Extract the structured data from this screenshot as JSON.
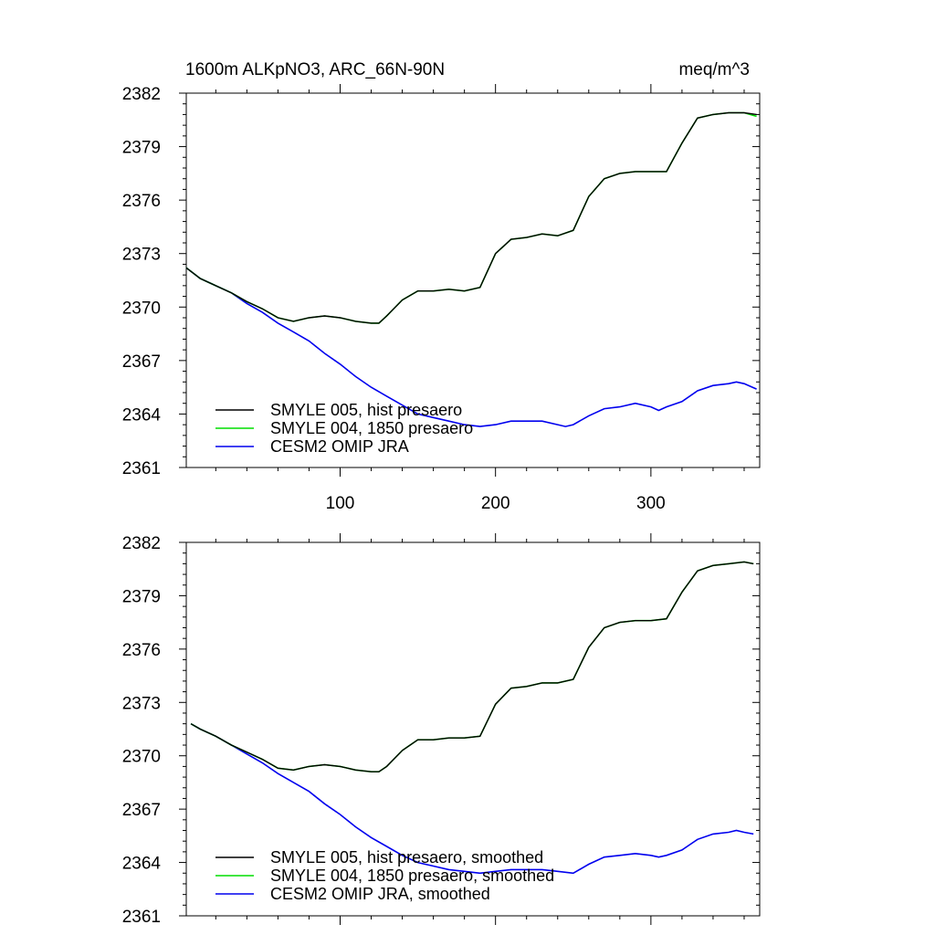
{
  "figure": {
    "title_left": "1600m ALKpNO3, ARC_66N-90N",
    "title_right": "meq/m^3"
  },
  "chart_data": [
    {
      "type": "line",
      "xlim": [
        1,
        370
      ],
      "ylim": [
        2361,
        2382
      ],
      "yticks": [
        2361,
        2364,
        2367,
        2370,
        2373,
        2376,
        2379,
        2382
      ],
      "xticks": [
        100,
        200,
        300
      ],
      "xtick_labels_shown": true,
      "grid": false,
      "legend_position": "bottom-left",
      "series": [
        {
          "name": "SMYLE 005, hist presaero",
          "color": "#000000",
          "points": [
            [
              1,
              2372.2
            ],
            [
              10,
              2371.6
            ],
            [
              20,
              2371.2
            ],
            [
              30,
              2370.8
            ],
            [
              40,
              2370.3
            ],
            [
              50,
              2369.9
            ],
            [
              60,
              2369.4
            ],
            [
              70,
              2369.2
            ],
            [
              80,
              2369.4
            ],
            [
              90,
              2369.5
            ],
            [
              100,
              2369.4
            ],
            [
              110,
              2369.2
            ],
            [
              120,
              2369.1
            ],
            [
              125,
              2369.1
            ],
            [
              130,
              2369.5
            ],
            [
              140,
              2370.4
            ],
            [
              150,
              2370.9
            ],
            [
              160,
              2370.9
            ],
            [
              170,
              2371.0
            ],
            [
              180,
              2370.9
            ],
            [
              190,
              2371.1
            ],
            [
              200,
              2373.0
            ],
            [
              210,
              2373.8
            ],
            [
              220,
              2373.9
            ],
            [
              230,
              2374.1
            ],
            [
              240,
              2374.0
            ],
            [
              250,
              2374.3
            ],
            [
              260,
              2376.2
            ],
            [
              270,
              2377.2
            ],
            [
              280,
              2377.5
            ],
            [
              290,
              2377.6
            ],
            [
              300,
              2377.6
            ],
            [
              310,
              2377.6
            ],
            [
              320,
              2379.2
            ],
            [
              330,
              2380.6
            ],
            [
              340,
              2380.8
            ],
            [
              350,
              2380.9
            ],
            [
              360,
              2380.9
            ],
            [
              368,
              2380.8
            ]
          ]
        },
        {
          "name": "SMYLE 004, 1850 presaero",
          "color": "#00dd00",
          "points": [
            [
              1,
              2372.2
            ],
            [
              10,
              2371.6
            ],
            [
              20,
              2371.2
            ],
            [
              30,
              2370.8
            ],
            [
              40,
              2370.3
            ],
            [
              50,
              2369.9
            ],
            [
              60,
              2369.4
            ],
            [
              70,
              2369.2
            ],
            [
              80,
              2369.4
            ],
            [
              90,
              2369.5
            ],
            [
              100,
              2369.4
            ],
            [
              110,
              2369.2
            ],
            [
              120,
              2369.1
            ],
            [
              125,
              2369.1
            ],
            [
              130,
              2369.5
            ],
            [
              140,
              2370.4
            ],
            [
              150,
              2370.9
            ],
            [
              160,
              2370.9
            ],
            [
              170,
              2371.0
            ],
            [
              180,
              2370.9
            ],
            [
              190,
              2371.1
            ],
            [
              200,
              2373.0
            ],
            [
              210,
              2373.8
            ],
            [
              220,
              2373.9
            ],
            [
              230,
              2374.1
            ],
            [
              240,
              2374.0
            ],
            [
              250,
              2374.3
            ],
            [
              260,
              2376.2
            ],
            [
              270,
              2377.2
            ],
            [
              280,
              2377.5
            ],
            [
              290,
              2377.6
            ],
            [
              300,
              2377.6
            ],
            [
              310,
              2377.6
            ],
            [
              320,
              2379.2
            ],
            [
              330,
              2380.6
            ],
            [
              340,
              2380.8
            ],
            [
              350,
              2380.9
            ],
            [
              360,
              2380.9
            ],
            [
              368,
              2380.7
            ]
          ]
        },
        {
          "name": "CESM2 OMIP JRA",
          "color": "#0000ee",
          "points": [
            [
              1,
              2372.2
            ],
            [
              10,
              2371.6
            ],
            [
              20,
              2371.2
            ],
            [
              30,
              2370.8
            ],
            [
              40,
              2370.2
            ],
            [
              50,
              2369.7
            ],
            [
              60,
              2369.1
            ],
            [
              70,
              2368.6
            ],
            [
              80,
              2368.1
            ],
            [
              90,
              2367.4
            ],
            [
              100,
              2366.8
            ],
            [
              110,
              2366.1
            ],
            [
              120,
              2365.5
            ],
            [
              130,
              2365.0
            ],
            [
              140,
              2364.5
            ],
            [
              150,
              2364.0
            ],
            [
              160,
              2363.8
            ],
            [
              170,
              2363.6
            ],
            [
              180,
              2363.4
            ],
            [
              190,
              2363.3
            ],
            [
              200,
              2363.4
            ],
            [
              210,
              2363.6
            ],
            [
              220,
              2363.6
            ],
            [
              230,
              2363.6
            ],
            [
              240,
              2363.4
            ],
            [
              245,
              2363.3
            ],
            [
              250,
              2363.4
            ],
            [
              260,
              2363.9
            ],
            [
              270,
              2364.3
            ],
            [
              280,
              2364.4
            ],
            [
              290,
              2364.6
            ],
            [
              300,
              2364.4
            ],
            [
              305,
              2364.2
            ],
            [
              310,
              2364.4
            ],
            [
              320,
              2364.7
            ],
            [
              330,
              2365.3
            ],
            [
              340,
              2365.6
            ],
            [
              350,
              2365.7
            ],
            [
              355,
              2365.8
            ],
            [
              360,
              2365.7
            ],
            [
              368,
              2365.4
            ]
          ]
        }
      ]
    },
    {
      "type": "line",
      "xlim": [
        1,
        370
      ],
      "ylim": [
        2361,
        2382
      ],
      "yticks": [
        2361,
        2364,
        2367,
        2370,
        2373,
        2376,
        2379,
        2382
      ],
      "xticks": [
        100,
        200,
        300
      ],
      "xtick_labels_shown": false,
      "grid": false,
      "legend_position": "bottom-left",
      "series": [
        {
          "name": "SMYLE 005, hist presaero, smoothed",
          "color": "#000000",
          "points": [
            [
              4,
              2371.8
            ],
            [
              10,
              2371.5
            ],
            [
              20,
              2371.1
            ],
            [
              30,
              2370.6
            ],
            [
              40,
              2370.2
            ],
            [
              50,
              2369.8
            ],
            [
              60,
              2369.3
            ],
            [
              70,
              2369.2
            ],
            [
              80,
              2369.4
            ],
            [
              90,
              2369.5
            ],
            [
              100,
              2369.4
            ],
            [
              110,
              2369.2
            ],
            [
              120,
              2369.1
            ],
            [
              125,
              2369.1
            ],
            [
              130,
              2369.4
            ],
            [
              140,
              2370.3
            ],
            [
              150,
              2370.9
            ],
            [
              160,
              2370.9
            ],
            [
              170,
              2371.0
            ],
            [
              180,
              2371.0
            ],
            [
              190,
              2371.1
            ],
            [
              200,
              2372.9
            ],
            [
              210,
              2373.8
            ],
            [
              220,
              2373.9
            ],
            [
              230,
              2374.1
            ],
            [
              240,
              2374.1
            ],
            [
              250,
              2374.3
            ],
            [
              260,
              2376.1
            ],
            [
              270,
              2377.2
            ],
            [
              280,
              2377.5
            ],
            [
              290,
              2377.6
            ],
            [
              300,
              2377.6
            ],
            [
              310,
              2377.7
            ],
            [
              320,
              2379.2
            ],
            [
              330,
              2380.4
            ],
            [
              340,
              2380.7
            ],
            [
              350,
              2380.8
            ],
            [
              360,
              2380.9
            ],
            [
              366,
              2380.8
            ]
          ]
        },
        {
          "name": "SMYLE 004, 1850 presaero, smoothed",
          "color": "#00dd00",
          "points": [
            [
              4,
              2371.8
            ],
            [
              10,
              2371.5
            ],
            [
              20,
              2371.1
            ],
            [
              30,
              2370.6
            ],
            [
              40,
              2370.2
            ],
            [
              50,
              2369.8
            ],
            [
              60,
              2369.3
            ],
            [
              70,
              2369.2
            ],
            [
              80,
              2369.4
            ],
            [
              90,
              2369.5
            ],
            [
              100,
              2369.4
            ],
            [
              110,
              2369.2
            ],
            [
              120,
              2369.1
            ],
            [
              125,
              2369.1
            ],
            [
              130,
              2369.4
            ],
            [
              140,
              2370.3
            ],
            [
              150,
              2370.9
            ],
            [
              160,
              2370.9
            ],
            [
              170,
              2371.0
            ],
            [
              180,
              2371.0
            ],
            [
              190,
              2371.1
            ],
            [
              200,
              2372.9
            ],
            [
              210,
              2373.8
            ],
            [
              220,
              2373.9
            ],
            [
              230,
              2374.1
            ],
            [
              240,
              2374.1
            ],
            [
              250,
              2374.3
            ],
            [
              260,
              2376.1
            ],
            [
              270,
              2377.2
            ],
            [
              280,
              2377.5
            ],
            [
              290,
              2377.6
            ],
            [
              300,
              2377.6
            ],
            [
              310,
              2377.7
            ],
            [
              320,
              2379.2
            ],
            [
              330,
              2380.4
            ],
            [
              340,
              2380.7
            ],
            [
              350,
              2380.8
            ],
            [
              360,
              2380.9
            ],
            [
              366,
              2380.8
            ]
          ]
        },
        {
          "name": "CESM2 OMIP JRA, smoothed",
          "color": "#0000ee",
          "points": [
            [
              4,
              2371.8
            ],
            [
              10,
              2371.5
            ],
            [
              20,
              2371.1
            ],
            [
              30,
              2370.6
            ],
            [
              40,
              2370.1
            ],
            [
              50,
              2369.6
            ],
            [
              60,
              2369.0
            ],
            [
              70,
              2368.5
            ],
            [
              80,
              2368.0
            ],
            [
              90,
              2367.3
            ],
            [
              100,
              2366.7
            ],
            [
              110,
              2366.0
            ],
            [
              120,
              2365.4
            ],
            [
              130,
              2364.9
            ],
            [
              140,
              2364.4
            ],
            [
              150,
              2364.0
            ],
            [
              160,
              2363.8
            ],
            [
              170,
              2363.6
            ],
            [
              180,
              2363.5
            ],
            [
              190,
              2363.4
            ],
            [
              200,
              2363.5
            ],
            [
              210,
              2363.6
            ],
            [
              220,
              2363.6
            ],
            [
              230,
              2363.6
            ],
            [
              240,
              2363.5
            ],
            [
              250,
              2363.4
            ],
            [
              260,
              2363.9
            ],
            [
              270,
              2364.3
            ],
            [
              280,
              2364.4
            ],
            [
              290,
              2364.5
            ],
            [
              300,
              2364.4
            ],
            [
              305,
              2364.3
            ],
            [
              310,
              2364.4
            ],
            [
              320,
              2364.7
            ],
            [
              330,
              2365.3
            ],
            [
              340,
              2365.6
            ],
            [
              350,
              2365.7
            ],
            [
              355,
              2365.8
            ],
            [
              360,
              2365.7
            ],
            [
              366,
              2365.6
            ]
          ]
        }
      ]
    }
  ]
}
